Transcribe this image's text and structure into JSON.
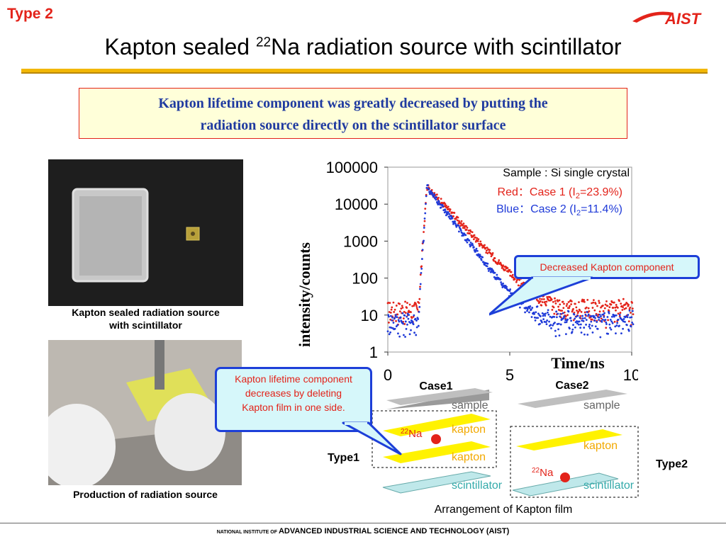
{
  "header": {
    "type_label": "Type 2",
    "title_prefix": "Kapton sealed ",
    "title_sup": "22",
    "title_suffix": "Na radiation source with scintillator",
    "logo_text": "AIST"
  },
  "callout_top": {
    "line1": "Kapton lifetime component was greatly decreased by putting the",
    "line2": "radiation source directly on the scintillator surface"
  },
  "photos": {
    "caption1_line1": "Kapton sealed radiation source",
    "caption1_line2": "with scintillator",
    "caption2": "Production of radiation source"
  },
  "callouts": {
    "decreased": "Decreased Kapton component",
    "deleting_line1": "Kapton lifetime component",
    "deleting_line2": "decreases by deleting",
    "deleting_line3": "Kapton film in one side."
  },
  "chart_data": {
    "type": "scatter",
    "xlabel": "Time/ns",
    "ylabel": "intensity/counts",
    "xlim": [
      0,
      10
    ],
    "ylim": [
      1,
      100000
    ],
    "yscale": "log",
    "x_ticks": [
      "0",
      "5",
      "10"
    ],
    "y_ticks": [
      "100000",
      "10000",
      "1000",
      "100",
      "10",
      "1"
    ],
    "legend": {
      "sample": "Sample : Si single crystal",
      "red_prefix": "Red：Case 1 (I",
      "red_sub": "2",
      "red_suffix": "=23.9%)",
      "blue_prefix": "Blue：Case 2 (I",
      "blue_sub": "2",
      "blue_suffix": "=11.4%)"
    },
    "series": [
      {
        "name": "Case 1",
        "color": "#e3231a",
        "peak_x": 1.6,
        "peak_y": 30000,
        "tail_y": 10
      },
      {
        "name": "Case 2",
        "color": "#1f3ad8",
        "peak_x": 1.6,
        "peak_y": 30000,
        "tail_y": 5
      }
    ]
  },
  "diagram": {
    "case1": "Case1",
    "case2": "Case2",
    "sample": "sample",
    "kapton": "kapton",
    "scintillator": "scintillator",
    "na_sup": "22",
    "na": "Na",
    "type1": "Type1",
    "type2": "Type2",
    "arrangement": "Arrangement of Kapton film"
  },
  "footer": {
    "prefix": "NATIONAL INSTITUTE OF ",
    "main": "ADVANCED INDUSTRIAL SCIENCE AND TECHNOLOGY (AIST)"
  },
  "colors": {
    "accent_red": "#e3231a",
    "callout_blue": "#1d3fd8",
    "kapton_yellow": "#fff200",
    "rule_gold": "#f2b705"
  }
}
